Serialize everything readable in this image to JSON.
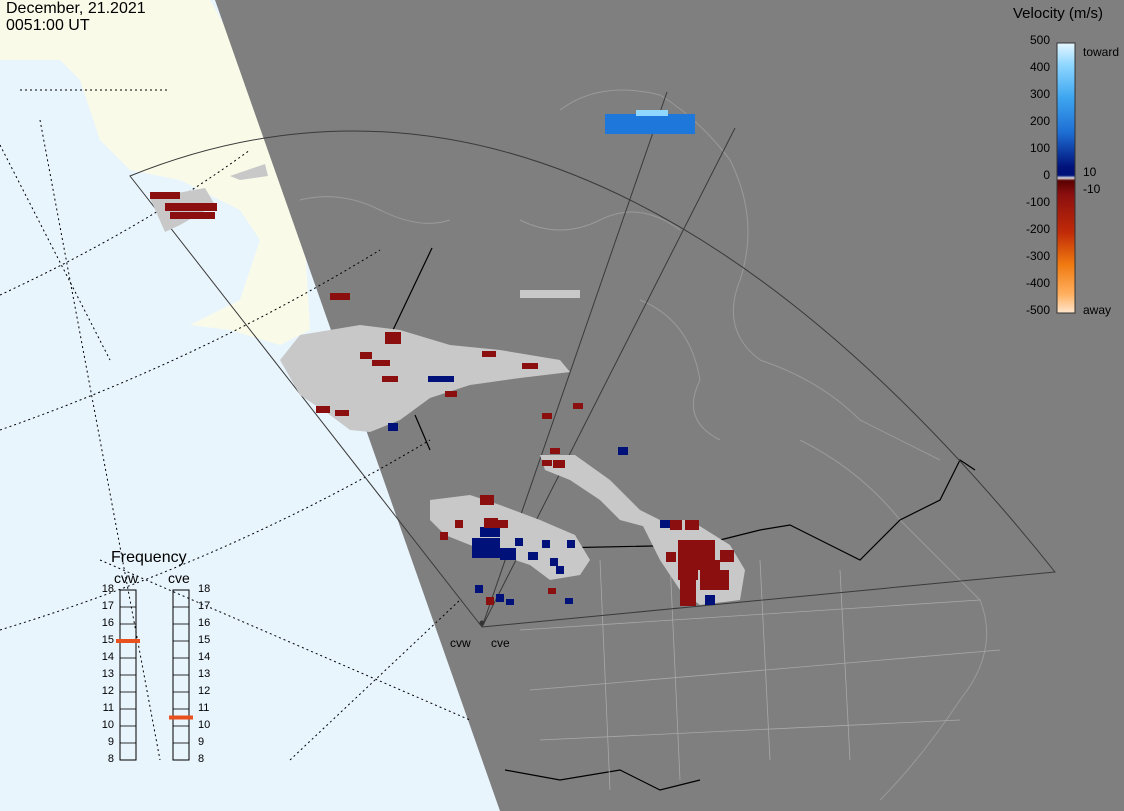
{
  "header": {
    "date": "December, 21.2021",
    "time": "0051:00 UT"
  },
  "velocity_legend": {
    "title": "Velocity (m/s)",
    "ticks": [
      "500",
      "400",
      "300",
      "200",
      "100",
      "0",
      "-100",
      "-200",
      "-300",
      "-400",
      "-500"
    ],
    "inner_labels": [
      "10",
      "-10"
    ],
    "toward_label": "toward",
    "away_label": "away"
  },
  "frequency_panel": {
    "title": "Frequency",
    "radar1_label": "cvw",
    "radar2_label": "cve",
    "scale": [
      "18",
      "17",
      "16",
      "15",
      "14",
      "13",
      "12",
      "11",
      "10",
      "9",
      "8"
    ],
    "radar1_mhz": 15,
    "radar2_mhz": 10.5
  },
  "sites": {
    "west_label": "cvw",
    "east_label": "cve"
  },
  "colors": {
    "ocean": "#e9f5fd",
    "land": "#fafae9",
    "night": "#7f7f7f",
    "ground_scatter": "#c8c8c8",
    "toward_strong": "#8fd7ff",
    "toward_mid": "#1e78dc",
    "toward_weak": "#00127a",
    "away_weak": "#8b0f0f",
    "away_mid": "#e05a00",
    "away_strong": "#ffd9b0",
    "freq_marker": "#e8501e"
  }
}
